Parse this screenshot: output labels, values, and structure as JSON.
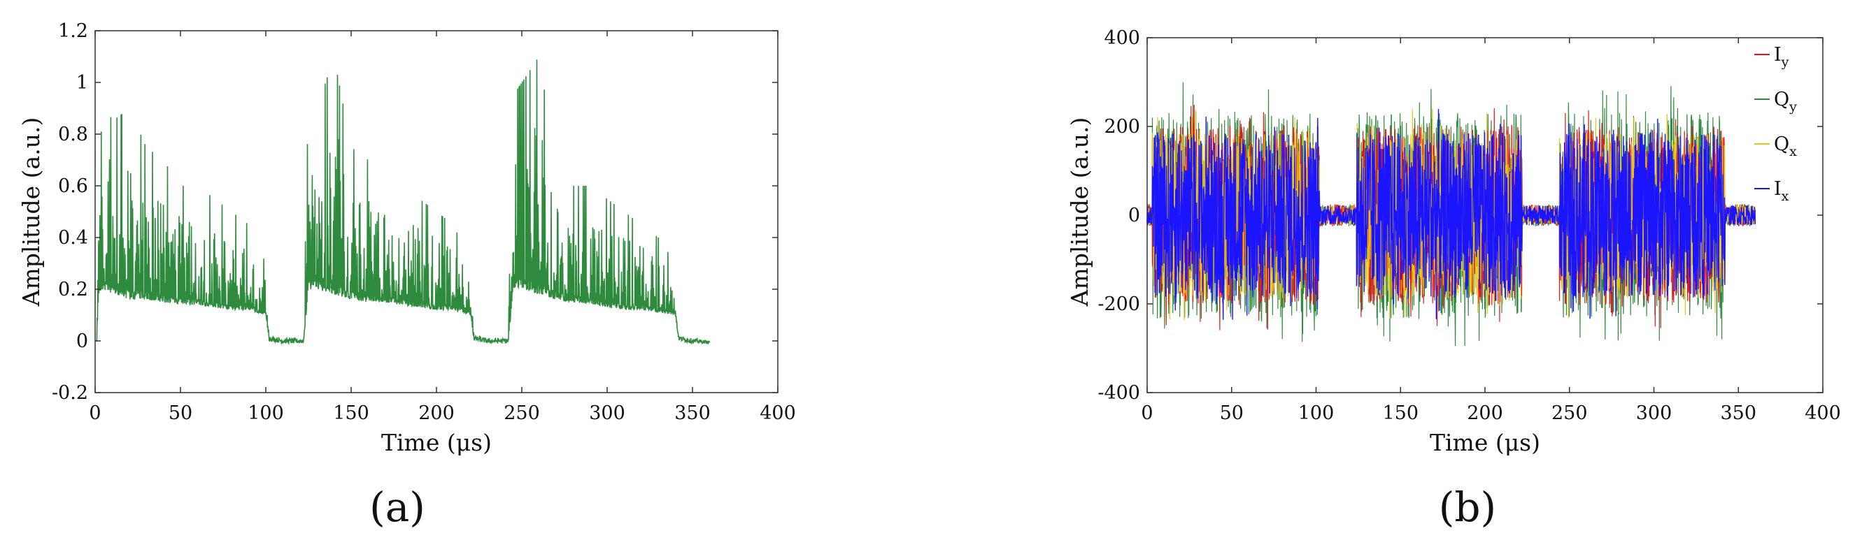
{
  "chart_data": [
    {
      "type": "line",
      "xlabel": "Time (μs)",
      "ylabel": "Amplitude (a.u.)",
      "xlim": [
        0,
        400
      ],
      "ylim": [
        -0.2,
        1.2
      ],
      "xticks": [
        0,
        50,
        100,
        150,
        200,
        250,
        300,
        350,
        400
      ],
      "yticks": [
        -0.2,
        0,
        0.2,
        0.4,
        0.6,
        0.8,
        1,
        1.2
      ],
      "ytick_labels": [
        "-0.2",
        "0",
        "0.2",
        "0.4",
        "0.6",
        "0.8",
        "1",
        "1.2"
      ],
      "grid": false,
      "panel_label": "(a)",
      "series": [
        {
          "color": "#2e8b3e",
          "description_of_envelope": "three bursts",
          "x": [
            0,
            1,
            2,
            5,
            10,
            20,
            30,
            40,
            50,
            60,
            70,
            80,
            90,
            100,
            102,
            110,
            120,
            122,
            125,
            130,
            140,
            150,
            160,
            170,
            180,
            190,
            200,
            210,
            220,
            222,
            230,
            240,
            242,
            245,
            250,
            260,
            270,
            280,
            290,
            300,
            310,
            320,
            330,
            340,
            342,
            350,
            360
          ],
          "y_upper": [
            0,
            0,
            0.65,
            0.95,
            0.85,
            0.9,
            0.75,
            0.7,
            0.6,
            0.6,
            0.55,
            0.5,
            0.45,
            0.3,
            0.02,
            0.01,
            0.01,
            0.01,
            0.95,
            0.9,
            1.1,
            0.75,
            0.7,
            0.6,
            0.6,
            0.55,
            0.5,
            0.45,
            0.3,
            0.02,
            0.01,
            0.01,
            0.01,
            0.95,
            1.0,
            1.1,
            0.7,
            0.6,
            0.6,
            0.55,
            0.5,
            0.45,
            0.4,
            0.3,
            0.02,
            0.01,
            0
          ],
          "y_lower": [
            0,
            0,
            0.18,
            0.2,
            0.18,
            0.16,
            0.16,
            0.15,
            0.14,
            0.14,
            0.13,
            0.12,
            0.12,
            0.1,
            0.0,
            -0.01,
            -0.01,
            -0.01,
            0.2,
            0.2,
            0.18,
            0.16,
            0.15,
            0.15,
            0.14,
            0.13,
            0.12,
            0.12,
            0.1,
            0.0,
            -0.01,
            -0.01,
            -0.01,
            0.2,
            0.2,
            0.18,
            0.16,
            0.15,
            0.14,
            0.13,
            0.12,
            0.12,
            0.11,
            0.1,
            0.0,
            -0.01,
            -0.01
          ]
        }
      ]
    },
    {
      "type": "line",
      "xlabel": "Time (μs)",
      "ylabel": "Amplitude (a.u.)",
      "xlim": [
        0,
        400
      ],
      "ylim": [
        -400,
        400
      ],
      "xticks": [
        0,
        50,
        100,
        150,
        200,
        250,
        300,
        350,
        400
      ],
      "yticks": [
        -400,
        -200,
        0,
        200,
        400
      ],
      "ytick_labels": [
        "-400",
        "-200",
        "0",
        "200",
        "400"
      ],
      "grid": false,
      "panel_label": "(b)",
      "legend_position": "top-right",
      "bursts": [
        [
          3,
          102
        ],
        [
          124,
          222
        ],
        [
          244,
          342
        ]
      ],
      "series": [
        {
          "name": "I",
          "sub": "y",
          "color": "#e8141c",
          "burst_amp": 260,
          "idle_amp": 25
        },
        {
          "name": "Q",
          "sub": "y",
          "color": "#2e8b3e",
          "burst_amp": 300,
          "idle_amp": 25
        },
        {
          "name": "Q",
          "sub": "x",
          "color": "#e8c414",
          "burst_amp": 240,
          "idle_amp": 22
        },
        {
          "name": "I",
          "sub": "x",
          "color": "#1a14ff",
          "burst_amp": 240,
          "idle_amp": 22
        }
      ]
    }
  ],
  "panel_labels": {
    "a": "(a)",
    "b": "(b)"
  }
}
